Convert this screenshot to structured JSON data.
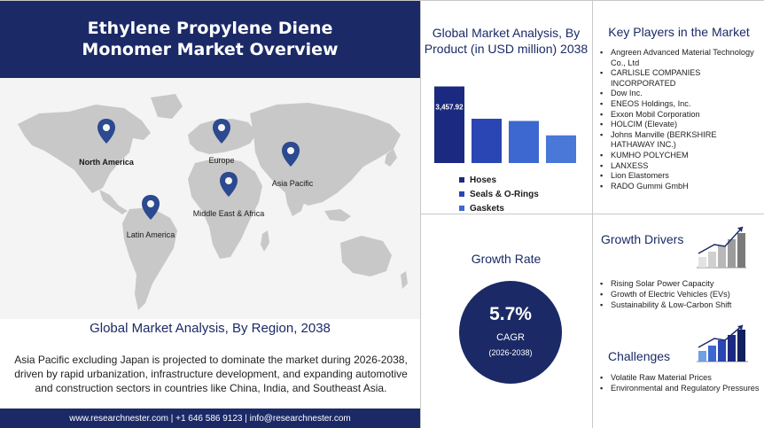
{
  "title": "Ethylene Propylene Diene Monomer Market Overview",
  "map": {
    "regions": [
      {
        "name": "North America"
      },
      {
        "name": "Europe"
      },
      {
        "name": "Asia Pacific"
      },
      {
        "name": "Middle East & Africa"
      },
      {
        "name": "Latin America"
      }
    ]
  },
  "region_section": {
    "title": "Global Market Analysis, By Region, 2038",
    "description": "Asia Pacific excluding Japan is projected to dominate the market during 2026-2038, driven by rapid urbanization, infrastructure development, and expanding automotive and construction sectors in countries like China, India, and Southeast Asia."
  },
  "footer": {
    "text": "www.researchnester.com | +1 646 586 9123 | info@researchnester.com"
  },
  "chart_data": {
    "type": "bar",
    "title": "Global Market Analysis, By Product (in USD million) 2038",
    "categories": [
      "Hoses",
      "Seals & O-Rings",
      "Gaskets",
      ""
    ],
    "values": [
      3457.92,
      2000,
      1900,
      1250
    ],
    "data_labels": [
      "3,457.92",
      "",
      "",
      ""
    ],
    "colors": [
      "#1b2a80",
      "#2a46b4",
      "#3c68d0",
      "#4a78d8"
    ],
    "legend": [
      "Hoses",
      "Seals & O-Rings",
      "Gaskets"
    ],
    "legend_position": "bottom",
    "ylim": [
      0,
      3600
    ],
    "grid": false
  },
  "key_players": {
    "title": "Key Players in the Market",
    "items": [
      "Angreen Advanced Material Technology Co., Ltd",
      "CARLISLE COMPANIES INCORPORATED",
      "Dow Inc.",
      "ENEOS Holdings, Inc.",
      "Exxon Mobil Corporation",
      "HOLCIM (Elevate)",
      "Johns Manville (BERKSHIRE HATHAWAY INC.)",
      "KUMHO POLYCHEM",
      "LANXESS",
      "Lion Elastomers",
      "RADO Gummi GmbH"
    ]
  },
  "growth_rate": {
    "title": "Growth Rate",
    "value": "5.7%",
    "label": "CAGR",
    "period": "(2026-2038)"
  },
  "growth_drivers": {
    "title": "Growth Drivers",
    "items": [
      "Rising Solar Power Capacity",
      "Growth of Electric Vehicles (EVs)",
      "Sustainability & Low-Carbon Shift"
    ]
  },
  "challenges": {
    "title": "Challenges",
    "items": [
      "Volatile Raw Material Prices",
      "Environmental and Regulatory Pressures"
    ]
  },
  "colors": {
    "navy": "#1b2a66",
    "map_land": "#c8c8c8",
    "pin": "#2b4a8f"
  }
}
